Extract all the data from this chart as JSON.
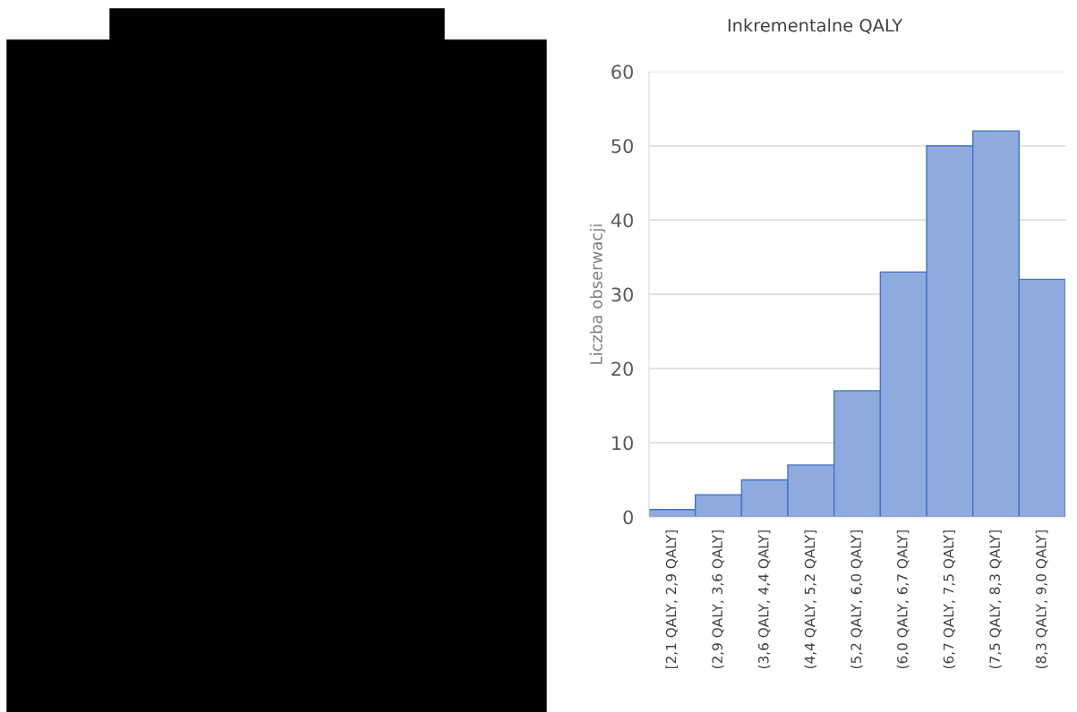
{
  "chart_data": {
    "type": "bar",
    "title": "Inkrementalne QALY",
    "ylabel": "Liczba obserwacji",
    "categories": [
      "[2,1 QALY, 2,9 QALY]",
      "(2,9 QALY, 3,6 QALY]",
      "(3,6 QALY, 4,4 QALY]",
      "(4,4 QALY, 5,2 QALY]",
      "(5,2 QALY, 6,0 QALY]",
      "(6,0 QALY, 6,7 QALY]",
      "(6,7 QALY, 7,5 QALY]",
      "(7,5 QALY, 8,3 QALY]",
      "(8,3 QALY, 9,0 QALY]"
    ],
    "values": [
      1,
      3,
      5,
      7,
      17,
      33,
      50,
      52,
      32
    ],
    "color": "#8faadc",
    "ylim": [
      0,
      60
    ],
    "yticks": [
      0,
      10,
      20,
      30,
      40,
      50,
      60
    ],
    "grid": "y"
  }
}
